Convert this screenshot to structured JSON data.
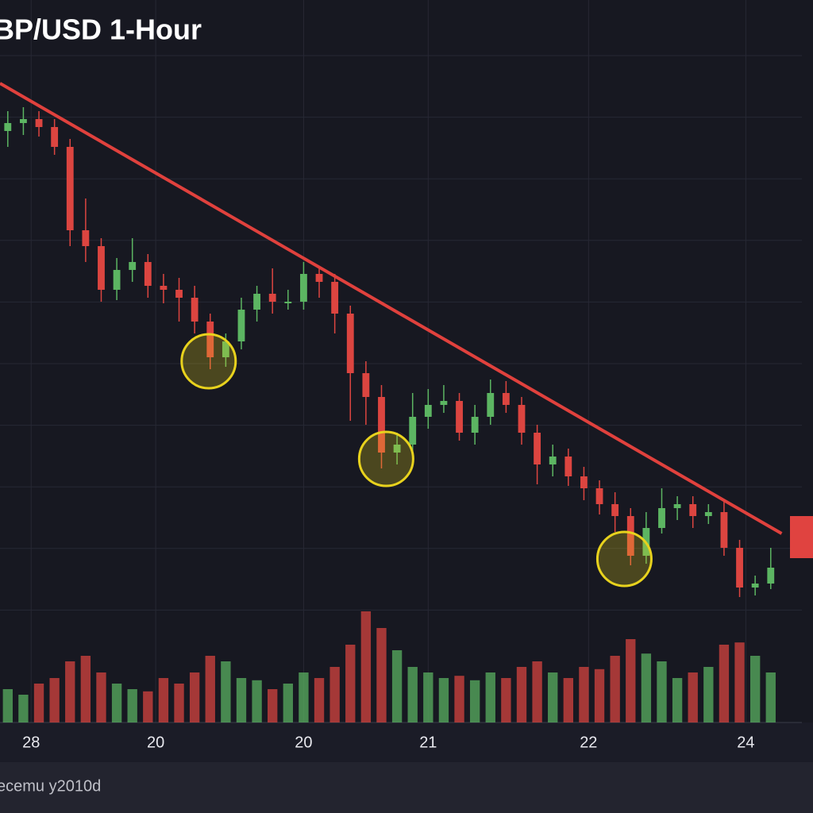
{
  "chart_data": {
    "type": "candlestick",
    "title": "BP/USD 1-Hour",
    "footer": "ecemu y2010d",
    "x": [
      0,
      1,
      2,
      3,
      4,
      5,
      6,
      7,
      8,
      9,
      10,
      11,
      12,
      13,
      14,
      15,
      16,
      17,
      18,
      19,
      20,
      21,
      22,
      23,
      24,
      25,
      26,
      27,
      28,
      29,
      30,
      31,
      32,
      33,
      34,
      35,
      36,
      37,
      38,
      39,
      40,
      41,
      42,
      43,
      44,
      45,
      46,
      47,
      48,
      49
    ],
    "open": [
      1.2835,
      1.2845,
      1.285,
      1.284,
      1.2815,
      1.271,
      1.269,
      1.2635,
      1.266,
      1.267,
      1.264,
      1.2635,
      1.2625,
      1.2595,
      1.255,
      1.257,
      1.261,
      1.263,
      1.262,
      1.262,
      1.2655,
      1.2645,
      1.2605,
      1.253,
      1.25,
      1.243,
      1.244,
      1.2475,
      1.249,
      1.2495,
      1.2455,
      1.2475,
      1.2505,
      1.249,
      1.2455,
      1.2415,
      1.2425,
      1.24,
      1.2385,
      1.2365,
      1.235,
      1.23,
      1.2335,
      1.236,
      1.2365,
      1.235,
      1.2355,
      1.231,
      1.226,
      1.2265
    ],
    "high": [
      1.286,
      1.2865,
      1.286,
      1.285,
      1.2825,
      1.275,
      1.27,
      1.2675,
      1.27,
      1.268,
      1.2655,
      1.265,
      1.264,
      1.2605,
      1.258,
      1.2625,
      1.264,
      1.2662,
      1.2635,
      1.267,
      1.2665,
      1.2655,
      1.2615,
      1.2545,
      1.2515,
      1.2455,
      1.2505,
      1.251,
      1.2515,
      1.2505,
      1.249,
      1.2522,
      1.252,
      1.25,
      1.2465,
      1.244,
      1.2435,
      1.2412,
      1.2395,
      1.238,
      1.236,
      1.2355,
      1.2385,
      1.2375,
      1.2375,
      1.2365,
      1.237,
      1.232,
      1.2275,
      1.231
    ],
    "low": [
      1.2815,
      1.283,
      1.2828,
      1.2805,
      1.269,
      1.267,
      1.262,
      1.2622,
      1.2645,
      1.2625,
      1.2618,
      1.2595,
      1.258,
      1.2535,
      1.2538,
      1.256,
      1.2595,
      1.2605,
      1.261,
      1.261,
      1.2625,
      1.258,
      1.247,
      1.2465,
      1.241,
      1.2415,
      1.243,
      1.246,
      1.248,
      1.2445,
      1.244,
      1.2465,
      1.248,
      1.244,
      1.239,
      1.24,
      1.2388,
      1.237,
      1.2352,
      1.233,
      1.2288,
      1.229,
      1.2328,
      1.2345,
      1.2335,
      1.234,
      1.23,
      1.2248,
      1.225,
      1.2258
    ],
    "close": [
      1.2845,
      1.285,
      1.284,
      1.2815,
      1.271,
      1.269,
      1.2635,
      1.266,
      1.267,
      1.264,
      1.2635,
      1.2625,
      1.2595,
      1.255,
      1.257,
      1.261,
      1.263,
      1.262,
      1.262,
      1.2655,
      1.2645,
      1.2605,
      1.253,
      1.25,
      1.243,
      1.244,
      1.2475,
      1.249,
      1.2495,
      1.2455,
      1.2475,
      1.2505,
      1.249,
      1.2455,
      1.2415,
      1.2425,
      1.24,
      1.2385,
      1.2365,
      1.235,
      1.23,
      1.2335,
      1.236,
      1.2365,
      1.235,
      1.2355,
      1.231,
      1.226,
      1.2265,
      1.2285
    ],
    "volume": {
      "values": [
        30,
        25,
        35,
        40,
        55,
        60,
        45,
        35,
        30,
        28,
        40,
        35,
        45,
        60,
        55,
        40,
        38,
        30,
        35,
        45,
        40,
        50,
        70,
        100,
        85,
        65,
        50,
        45,
        40,
        42,
        38,
        45,
        40,
        50,
        55,
        45,
        40,
        50,
        48,
        60,
        75,
        62,
        55,
        40,
        45,
        50,
        70,
        72,
        60,
        45
      ],
      "ylim": [
        0,
        100
      ]
    },
    "xlim": [
      -0.5,
      51
    ],
    "ylim": [
      1.224,
      1.29
    ],
    "xticks": [
      {
        "value": 1.5,
        "label": "28"
      },
      {
        "value": 9.5,
        "label": "20"
      },
      {
        "value": 19.0,
        "label": "20"
      },
      {
        "value": 27.0,
        "label": "21"
      },
      {
        "value": 37.3,
        "label": "22"
      },
      {
        "value": 47.4,
        "label": "24"
      }
    ],
    "trendline": {
      "x": [
        -0.5,
        49.7
      ],
      "values": [
        1.2895,
        1.2328
      ],
      "color": "#e0413d"
    },
    "highlights": {
      "x": [
        12.9,
        24.3,
        39.6
      ],
      "values": [
        1.2545,
        1.2422,
        1.2296
      ],
      "color": "#e8d21d"
    },
    "up_color": "#5cb562",
    "down_color": "#dc4540",
    "grid": true
  }
}
